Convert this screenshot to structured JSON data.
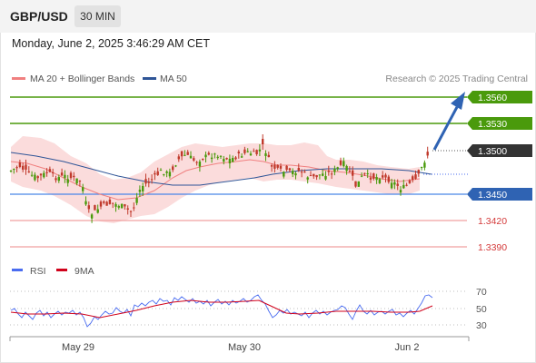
{
  "header": {
    "symbol": "GBP/USD",
    "interval": "30 MIN",
    "timestamp": "Monday, June 2, 2025 3:46:29 AM CET"
  },
  "legend": {
    "ma20_label": "MA 20 + Bollinger Bands",
    "ma50_label": "MA 50",
    "ma20_color": "#f08080",
    "ma50_color": "#2f5597",
    "credit": "Research © 2025 Trading Central"
  },
  "levels": {
    "resistance_2": "1.3560",
    "resistance_1": "1.3530",
    "last_price": "1.3500",
    "pivot": "1.3450",
    "support_1": "1.3420",
    "support_2": "1.3390"
  },
  "colors": {
    "resistance": "#4a9a0c",
    "pivot": "#4a86e8",
    "support": "#d43a3a",
    "last": "#333333",
    "arrow": "#2f63b3",
    "bull": "#4a9a0c",
    "bear": "#c0392b",
    "band": "#fbdcdc"
  },
  "rsi": {
    "rsi_label": "RSI",
    "ma_label": "9MA",
    "rsi_color": "#4a6cf0",
    "ma_color": "#d0021b",
    "levels": [
      "70",
      "50",
      "30"
    ]
  },
  "xaxis": {
    "labels": [
      "May 29",
      "May 30",
      "Jun 2"
    ]
  }
}
